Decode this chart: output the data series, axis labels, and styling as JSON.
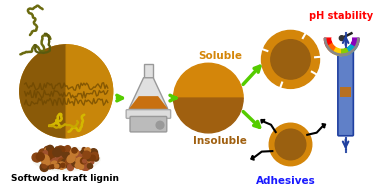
{
  "bg_color": "#ffffff",
  "lignin_circle_color": "#c8860a",
  "lignin_circle_color2": "#8a5a08",
  "soluble_color": "#d4860a",
  "insoluble_color": "#a06010",
  "np_outer": "#d4860a",
  "np_inner": "#9a6010",
  "arrow_color": "#55cc00",
  "text_soluble": "Soluble",
  "text_insoluble": "Insoluble",
  "text_adhesives": "Adhesives",
  "text_ph": "pH stability",
  "text_lignin": "Softwood kraft lignin",
  "text_adhesives_color": "#1a1aff",
  "text_ph_color": "#ff0000",
  "text_lignin_color": "#000000",
  "squiggle_color1": "#7a7a20",
  "squiggle_color2": "#d4b800",
  "flask_color": "#e0e0e0",
  "flask_liquid": "#c87010",
  "hotplate_color": "#cccccc",
  "cylinder_color": "#6080c8",
  "cylinder_edge": "#2040a0",
  "ph_colors": [
    "#ff0000",
    "#ff6600",
    "#ffcc00",
    "#88cc00",
    "#00aacc",
    "#8800bb"
  ],
  "epoxy_color": "#ffffff",
  "arm_color": "#111111"
}
